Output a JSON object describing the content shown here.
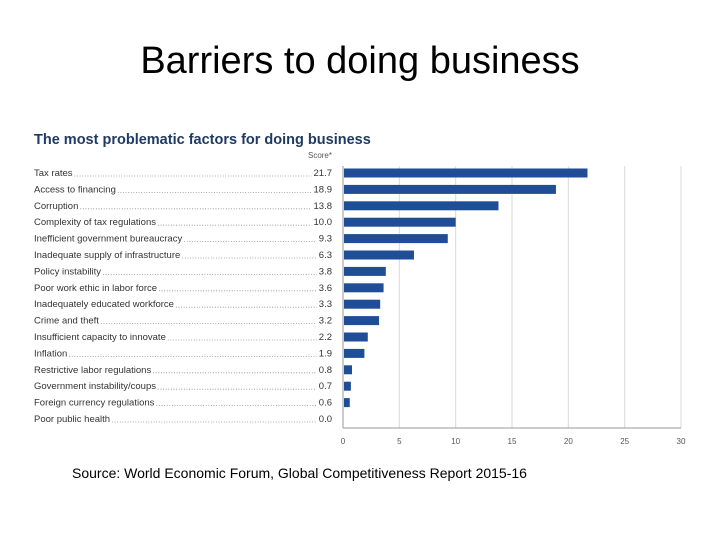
{
  "slide": {
    "title": "Barriers to doing business",
    "source": "Source: World Economic Forum, Global Competitiveness Report 2015-16"
  },
  "chart_data": {
    "type": "bar",
    "orientation": "horizontal",
    "title": "The most problematic factors for doing business",
    "score_label": "Score*",
    "categories": [
      "Tax rates",
      "Access to financing",
      "Corruption",
      "Complexity of tax regulations",
      "Inefficient government bureaucracy",
      "Inadequate supply of infrastructure",
      "Policy instability",
      "Poor work ethic in labor force",
      "Inadequately educated workforce",
      "Crime and theft",
      "Insufficient capacity to innovate",
      "Inflation",
      "Restrictive labor regulations",
      "Government instability/coups",
      "Foreign currency regulations",
      "Poor public health"
    ],
    "values": [
      21.7,
      18.9,
      13.8,
      10.0,
      9.3,
      6.3,
      3.8,
      3.6,
      3.3,
      3.2,
      2.2,
      1.9,
      0.8,
      0.7,
      0.6,
      0.0
    ],
    "value_labels": [
      "21.7",
      "18.9",
      "13.8",
      "10.0",
      "9.3",
      "6.3",
      "3.8",
      "3.6",
      "3.3",
      "3.2",
      "2.2",
      "1.9",
      "0.8",
      "0.7",
      "0.6",
      "0.0"
    ],
    "xlim": [
      0,
      30
    ],
    "xticks": [
      0,
      5,
      10,
      15,
      20,
      25,
      30
    ],
    "grid": true,
    "bar_color": "#1f4e96"
  }
}
